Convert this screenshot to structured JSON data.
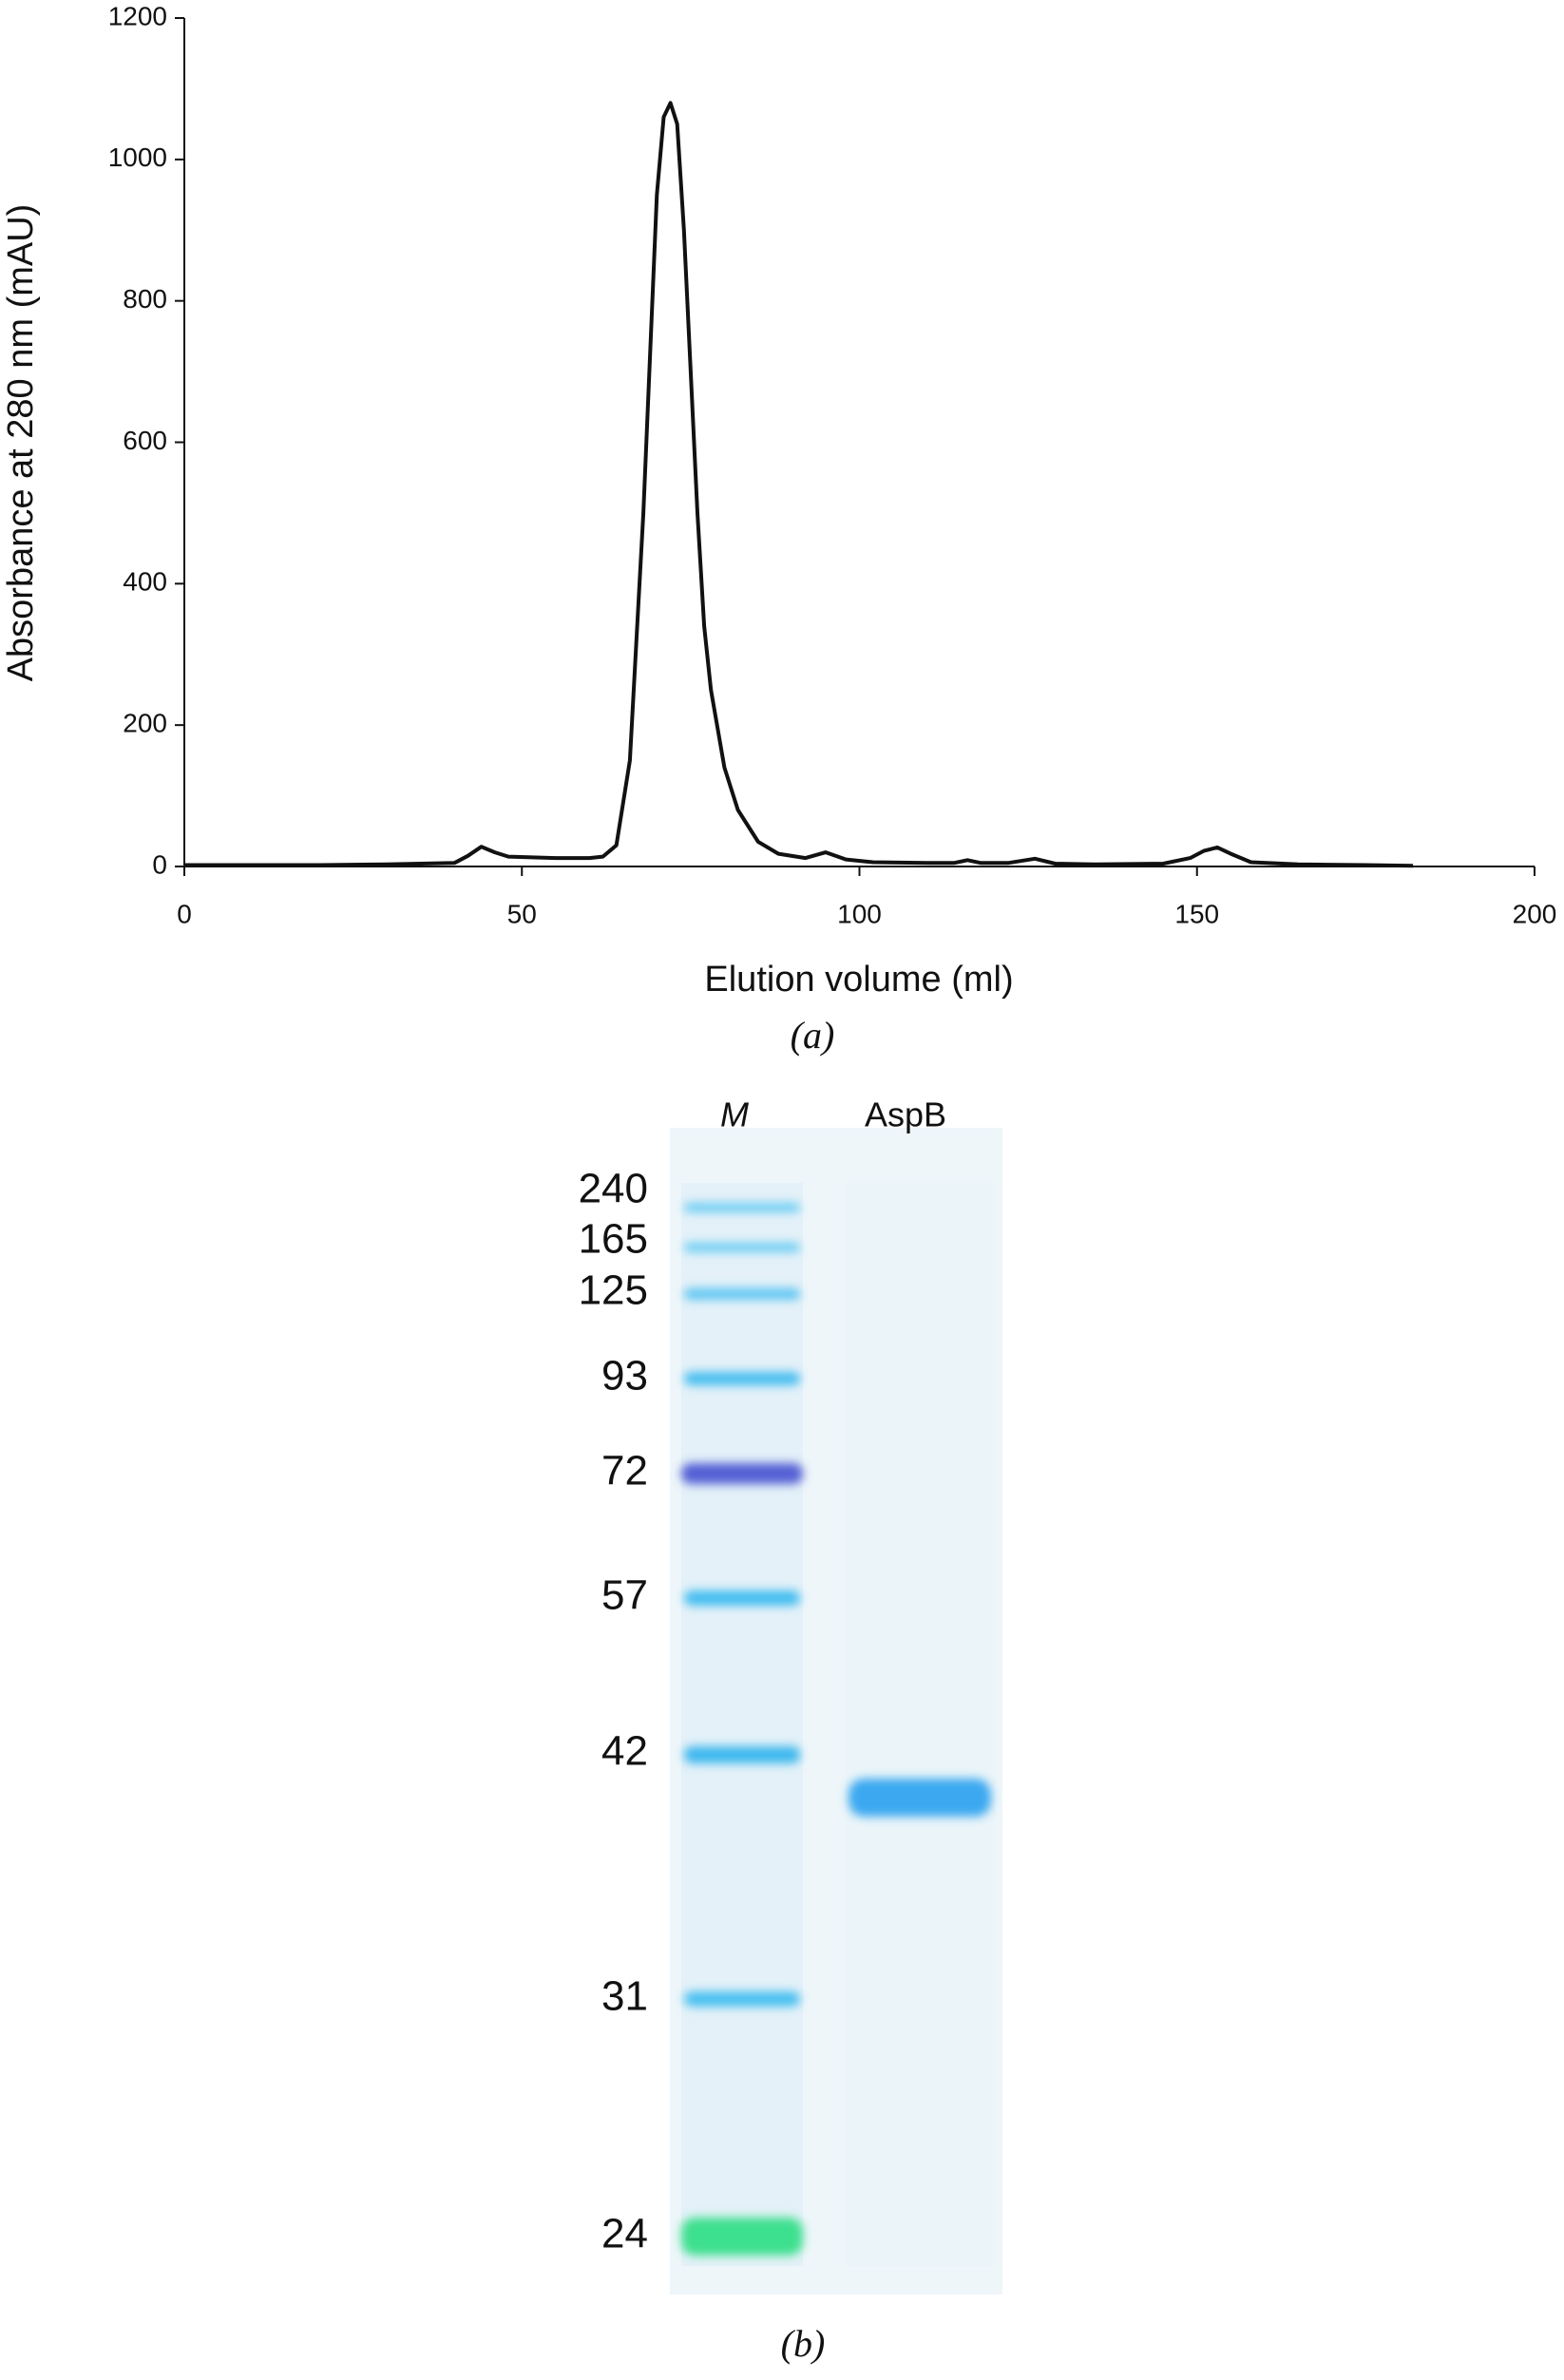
{
  "chart_data": {
    "type": "line",
    "ylabel": "Absorbance at 280 nm (mAU)",
    "xlabel": "Elution volume (ml)",
    "caption": "(a)",
    "color": "#111111",
    "x": [
      0,
      10,
      20,
      30,
      40,
      42,
      44,
      46,
      48,
      55,
      60,
      62,
      64,
      66,
      68,
      70,
      71,
      72,
      73,
      74,
      75,
      76,
      77,
      78,
      80,
      82,
      85,
      88,
      92,
      95,
      98,
      102,
      110,
      114,
      116,
      118,
      122,
      126,
      129,
      135,
      145,
      149,
      151,
      153,
      155,
      158,
      165,
      175,
      182
    ],
    "values": [
      2,
      2,
      2,
      3,
      5,
      15,
      28,
      20,
      14,
      12,
      12,
      14,
      30,
      150,
      500,
      950,
      1060,
      1080,
      1050,
      900,
      700,
      500,
      340,
      250,
      140,
      80,
      35,
      18,
      12,
      20,
      10,
      6,
      5,
      5,
      9,
      5,
      5,
      11,
      4,
      3,
      4,
      12,
      22,
      27,
      18,
      6,
      3,
      2,
      1
    ],
    "xlim": [
      0,
      200
    ],
    "xticks": [
      0,
      50,
      100,
      150,
      200
    ],
    "ylim": [
      0,
      1200
    ],
    "yticks": [
      0,
      200,
      400,
      600,
      800,
      1000,
      1200
    ]
  },
  "gel": {
    "lanes": [
      "M",
      "AspB"
    ],
    "markers": [
      240,
      165,
      125,
      93,
      72,
      57,
      42,
      31,
      24
    ],
    "caption": "(b)"
  }
}
